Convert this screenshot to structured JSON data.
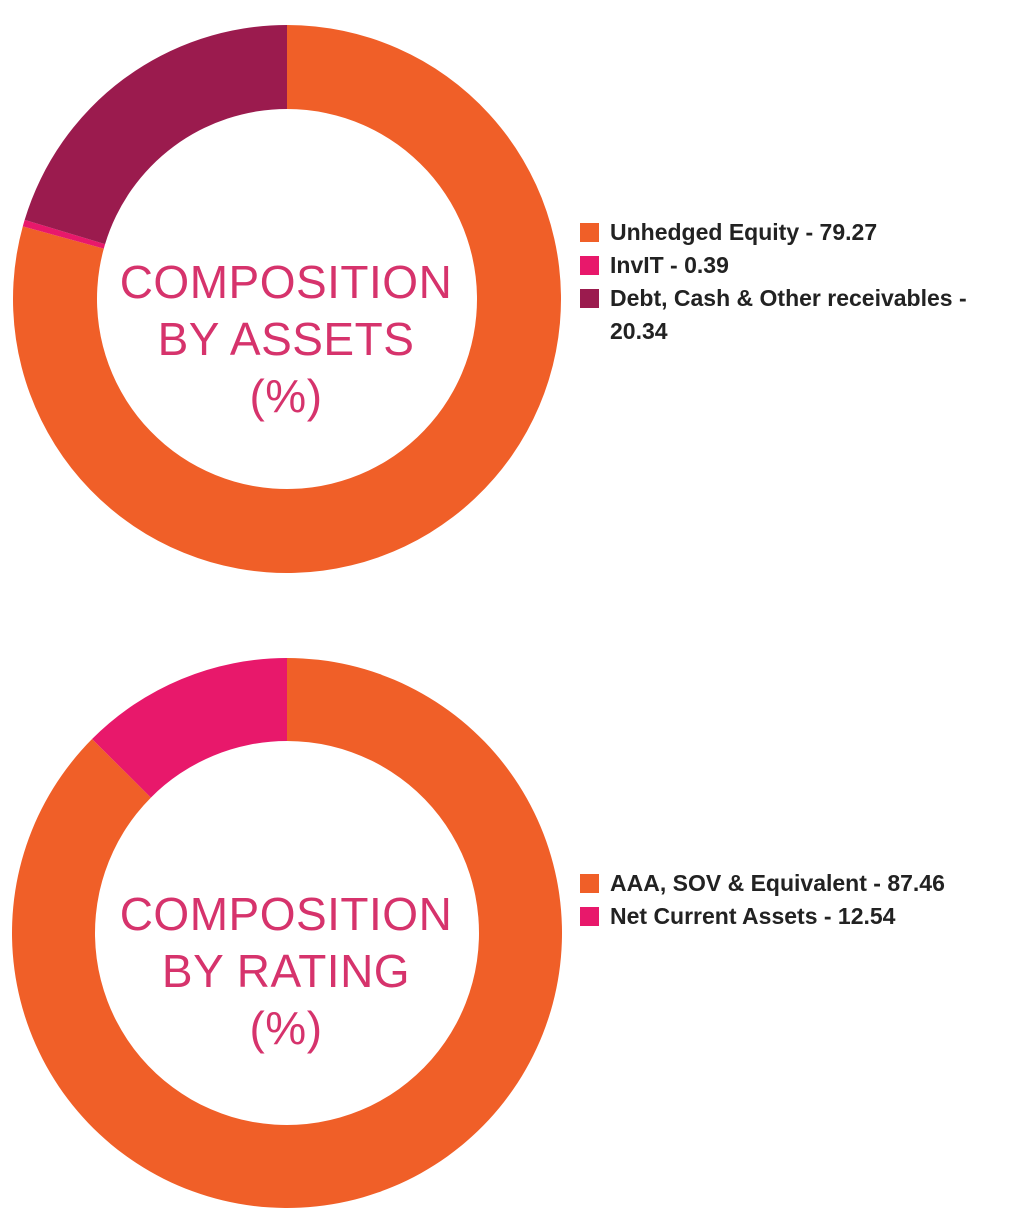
{
  "colors": {
    "unhedged_equity": "#f05f28",
    "invit": "#e8186b",
    "debt_cash": "#9b1b4e",
    "aaa_sov": "#f05f28",
    "net_current_assets": "#e8186b",
    "center_text": "#d6336c"
  },
  "chart_data": [
    {
      "type": "pie",
      "style": "donut",
      "center_label": [
        "COMPOSITION",
        "BY ASSETS",
        "(%)"
      ],
      "legend_position": "right",
      "slices": [
        {
          "label": "Unhedged Equity - 79.27",
          "value": 79.27,
          "color": "#f05f28"
        },
        {
          "label": "InvIT - 0.39",
          "value": 0.39,
          "color": "#e8186b"
        },
        {
          "label": "Debt, Cash & Other receivables - 20.34",
          "value": 20.34,
          "color": "#9b1b4e"
        }
      ]
    },
    {
      "type": "pie",
      "style": "donut",
      "center_label": [
        "COMPOSITION",
        "BY RATING",
        "(%)"
      ],
      "legend_position": "right",
      "slices": [
        {
          "label": "AAA, SOV & Equivalent - 87.46",
          "value": 87.46,
          "color": "#f05f28"
        },
        {
          "label": "Net Current Assets - 12.54",
          "value": 12.54,
          "color": "#e8186b"
        }
      ]
    }
  ]
}
